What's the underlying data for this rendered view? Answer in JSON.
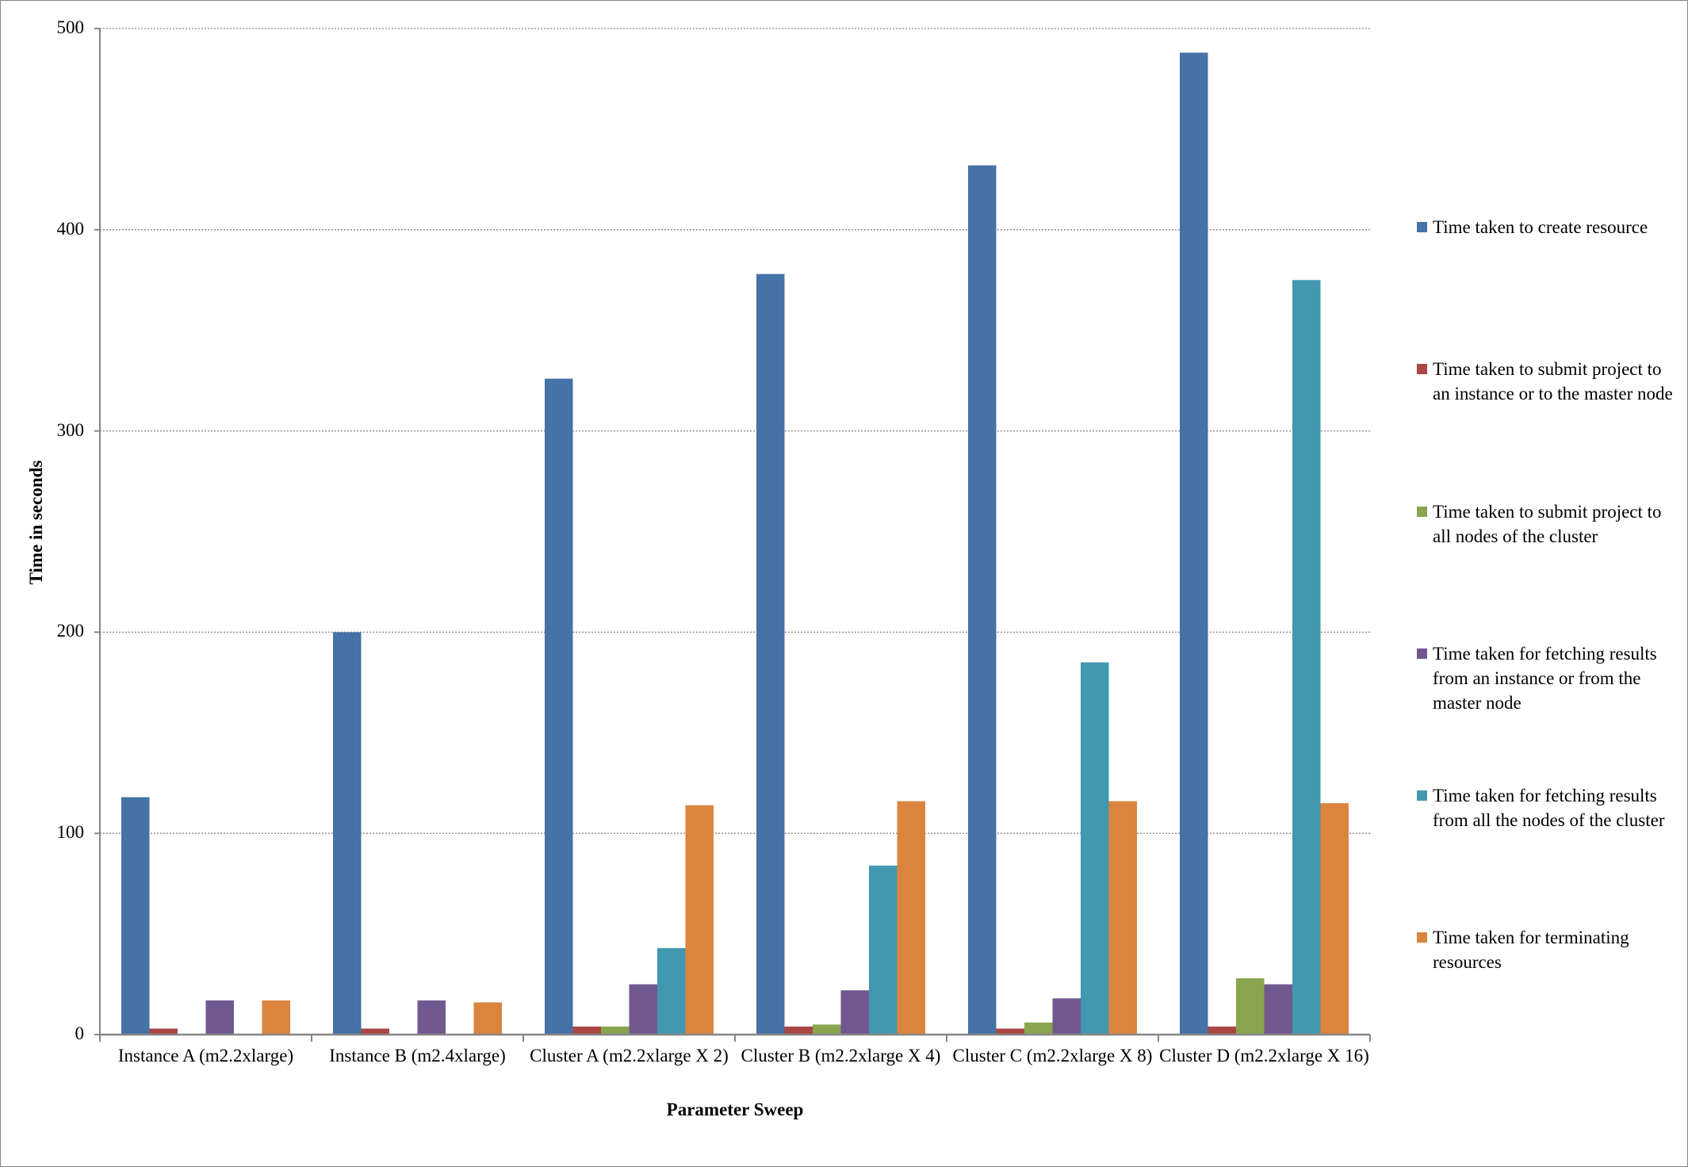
{
  "chart_data": {
    "type": "bar",
    "title": "",
    "xlabel": "Parameter Sweep",
    "ylabel": "Time in seconds",
    "ylim": [
      0,
      500
    ],
    "yticks": [
      0,
      100,
      200,
      300,
      400,
      500
    ],
    "grid": true,
    "legend_position": "right",
    "categories": [
      "Instance A (m2.2xlarge)",
      "Instance B (m2.4xlarge)",
      "Cluster A (m2.2xlarge X 2)",
      "Cluster B (m2.2xlarge X 4)",
      "Cluster C (m2.2xlarge X 8)",
      "Cluster D (m2.2xlarge X 16)"
    ],
    "series": [
      {
        "name": "Time taken to create resource",
        "color": "#4572A7",
        "values": [
          118,
          200,
          326,
          378,
          432,
          488
        ]
      },
      {
        "name": "Time taken to submit project to an instance or to the master node",
        "color": "#AA4643",
        "values": [
          3,
          3,
          4,
          4,
          3,
          4
        ]
      },
      {
        "name": "Time taken to submit project to all nodes of the cluster",
        "color": "#89A54E",
        "values": [
          0,
          0,
          4,
          5,
          6,
          28
        ]
      },
      {
        "name": "Time taken for fetching results from an instance or from the master node",
        "color": "#71588F",
        "values": [
          17,
          17,
          25,
          22,
          18,
          25
        ]
      },
      {
        "name": "Time taken for fetching results from all the nodes of the cluster",
        "color": "#4198AF",
        "values": [
          0,
          0,
          43,
          84,
          185,
          375
        ]
      },
      {
        "name": "Time taken for terminating resources",
        "color": "#DB843D",
        "values": [
          17,
          16,
          114,
          116,
          116,
          115
        ]
      }
    ]
  }
}
